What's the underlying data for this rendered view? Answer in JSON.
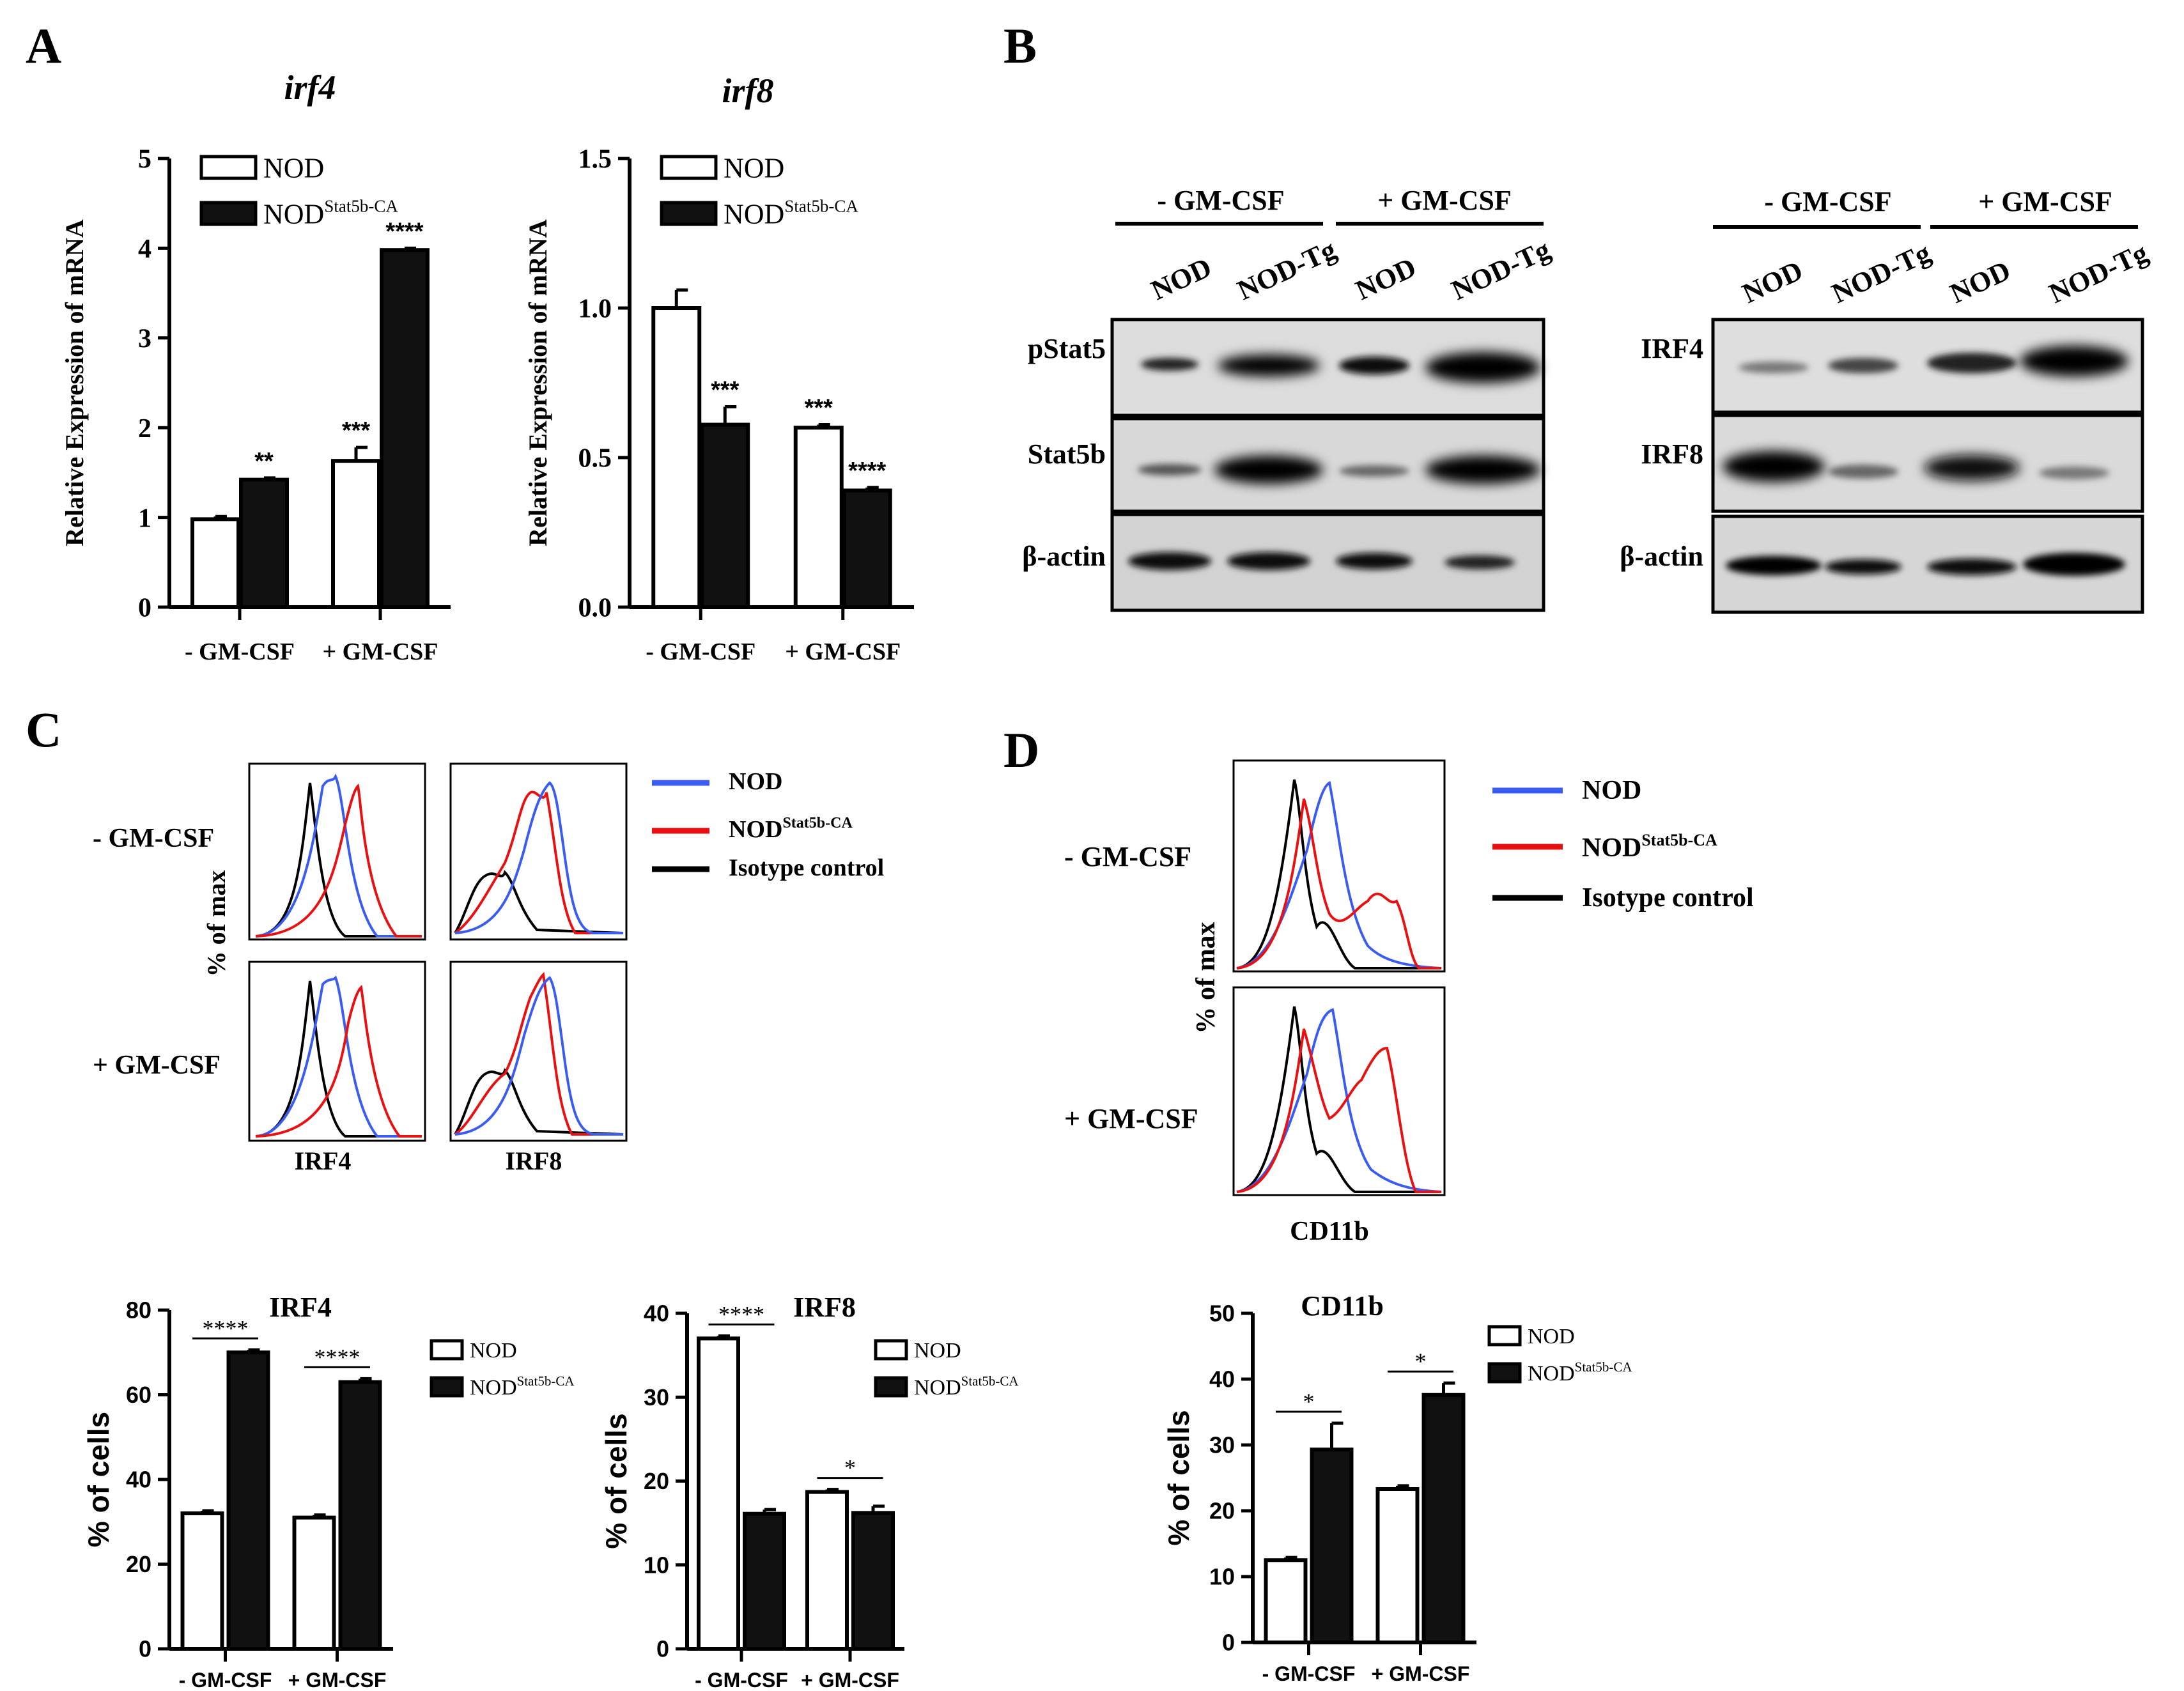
{
  "figure": {
    "panel_labels": {
      "a": "A",
      "b": "B",
      "c": "C",
      "d": "D"
    },
    "colors": {
      "nod": "#3a5cf0",
      "tg": "#e81010",
      "isotype": "#000000",
      "bar_dark": "#111111",
      "bar_light": "#ffffff"
    }
  },
  "chart_data": [
    {
      "id": "irf4_mrna",
      "type": "bar",
      "title": "irf4",
      "ylabel": "Relative Expression of mRNA",
      "ylim": [
        0,
        5
      ],
      "yticks": [
        "0",
        "1",
        "2",
        "3",
        "4",
        "5"
      ],
      "categories": [
        "- GM-CSF",
        "+ GM-CSF"
      ],
      "legend": [
        "NOD",
        "NOD",
        "Stat5b-CA"
      ],
      "series": [
        {
          "name": "NOD",
          "values": [
            0.98,
            1.63
          ],
          "errors": [
            0.03,
            0.15
          ]
        },
        {
          "name": "NODStat5b-CA",
          "values": [
            1.42,
            3.98
          ],
          "errors": [
            0.02,
            0.02
          ]
        }
      ],
      "annotations": [
        "",
        "**",
        "***",
        "****"
      ]
    },
    {
      "id": "irf8_mrna",
      "type": "bar",
      "title": "irf8",
      "ylabel": "Relative Expression of mRNA",
      "ylim": [
        0,
        1.5
      ],
      "yticks": [
        "0.0",
        "0.5",
        "1.0",
        "1.5"
      ],
      "categories": [
        "- GM-CSF",
        "+ GM-CSF"
      ],
      "legend": [
        "NOD",
        "NOD",
        "Stat5b-CA"
      ],
      "series": [
        {
          "name": "NOD",
          "values": [
            1.0,
            0.6
          ],
          "errors": [
            0.06,
            0.01
          ]
        },
        {
          "name": "NODStat5b-CA",
          "values": [
            0.61,
            0.39
          ],
          "errors": [
            0.06,
            0.01
          ]
        }
      ],
      "annotations": [
        "",
        "***",
        "***",
        "****"
      ]
    },
    {
      "id": "irf4_cells",
      "type": "bar",
      "title": "IRF4",
      "ylabel": "% of cells",
      "ylim": [
        0,
        80
      ],
      "yticks": [
        "0",
        "20",
        "40",
        "60",
        "80"
      ],
      "categories": [
        "- GM-CSF",
        "+ GM-CSF"
      ],
      "legend": [
        "NOD",
        "NOD",
        "Stat5b-CA"
      ],
      "series": [
        {
          "name": "NOD",
          "values": [
            32,
            31
          ],
          "errors": [
            0.6,
            0.6
          ]
        },
        {
          "name": "NODStat5b-CA",
          "values": [
            70,
            63
          ],
          "errors": [
            0.6,
            0.8
          ]
        }
      ],
      "significance": [
        "****",
        "****"
      ]
    },
    {
      "id": "irf8_cells",
      "type": "bar",
      "title": "IRF8",
      "ylabel": "% of cells",
      "ylim": [
        0,
        40
      ],
      "yticks": [
        "0",
        "10",
        "20",
        "30",
        "40"
      ],
      "categories": [
        "- GM-CSF",
        "+ GM-CSF"
      ],
      "legend": [
        "NOD",
        "NOD",
        "Stat5b-CA"
      ],
      "series": [
        {
          "name": "NOD",
          "values": [
            37,
            18.7
          ],
          "errors": [
            0.3,
            0.3
          ]
        },
        {
          "name": "NODStat5b-CA",
          "values": [
            16.1,
            16.2
          ],
          "errors": [
            0.5,
            0.8
          ]
        }
      ],
      "significance": [
        "****",
        "*"
      ]
    },
    {
      "id": "cd11b_cells",
      "type": "bar",
      "title": "CD11b",
      "ylabel": "% of cells",
      "ylim": [
        0,
        50
      ],
      "yticks": [
        "0",
        "10",
        "20",
        "30",
        "40",
        "50"
      ],
      "categories": [
        "- GM-CSF",
        "+ GM-CSF"
      ],
      "legend": [
        "NOD",
        "NOD",
        "Stat5b-CA"
      ],
      "series": [
        {
          "name": "NOD",
          "values": [
            12.5,
            23.3
          ],
          "errors": [
            0.4,
            0.5
          ]
        },
        {
          "name": "NODStat5b-CA",
          "values": [
            29.3,
            37.6
          ],
          "errors": [
            4.0,
            1.8
          ]
        }
      ],
      "significance": [
        "*",
        "*"
      ]
    }
  ],
  "blots": {
    "header_minus": "- GM-CSF",
    "header_plus": "+ GM-CSF",
    "lanes": [
      "NOD",
      "NOD-Tg",
      "NOD",
      "NOD-Tg"
    ],
    "left_rows": [
      "pStat5",
      "Stat5b",
      "β-actin"
    ],
    "right_rows": [
      "IRF4",
      "IRF8",
      "β-actin"
    ]
  },
  "flow": {
    "row_labels": [
      "- GM-CSF",
      "+ GM-CSF"
    ],
    "ylabel": "% of max",
    "xlabels_c": [
      "IRF4",
      "IRF8"
    ],
    "xlabel_d": "CD11b",
    "legend": [
      "NOD",
      "NOD",
      "Stat5b-CA",
      "Isotype control"
    ]
  }
}
